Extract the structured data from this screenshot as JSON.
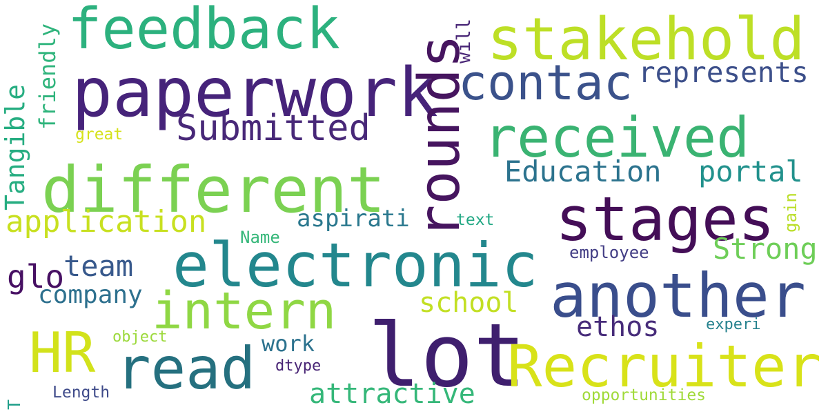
{
  "words": [
    {
      "text": "lot",
      "color": "#3f1f6e"
    },
    {
      "text": "paperwork",
      "color": "#46237a"
    },
    {
      "text": "different",
      "color": "#7bd152"
    },
    {
      "text": "electronic",
      "color": "#23878d"
    },
    {
      "text": "rounds",
      "color": "#46155f"
    },
    {
      "text": "stakehold",
      "color": "#bddf26"
    },
    {
      "text": "stages",
      "color": "#440e57"
    },
    {
      "text": "another",
      "color": "#3a4e8c"
    },
    {
      "text": "Recruiter",
      "color": "#d8e219"
    },
    {
      "text": "read",
      "color": "#25707f"
    },
    {
      "text": "feedback",
      "color": "#2cb17e"
    },
    {
      "text": "received",
      "color": "#3ab372"
    },
    {
      "text": "intern",
      "color": "#8fd744"
    },
    {
      "text": "contac",
      "color": "#3b528b"
    },
    {
      "text": "HR",
      "color": "#d2e21b"
    },
    {
      "text": "Submitted",
      "color": "#482878"
    },
    {
      "text": "application",
      "color": "#c8e020"
    },
    {
      "text": "Education",
      "color": "#2c738e"
    },
    {
      "text": "represents",
      "color": "#3c4f8a"
    },
    {
      "text": "portal",
      "color": "#21918c"
    },
    {
      "text": "Strong",
      "color": "#6ece58"
    },
    {
      "text": "team",
      "color": "#38598c"
    },
    {
      "text": "attractive",
      "color": "#35b779"
    },
    {
      "text": "school",
      "color": "#c2df23"
    },
    {
      "text": "ethos",
      "color": "#472c7a"
    },
    {
      "text": "glo",
      "color": "#471063"
    },
    {
      "text": "company",
      "color": "#2d708e"
    },
    {
      "text": "aspirati",
      "color": "#2a788e"
    },
    {
      "text": "work",
      "color": "#2c728e"
    },
    {
      "text": "Tangible",
      "color": "#26ad81"
    },
    {
      "text": "friendly",
      "color": "#2fb47c"
    },
    {
      "text": "will",
      "color": "#482576"
    },
    {
      "text": "employee",
      "color": "#433e85"
    },
    {
      "text": "Name",
      "color": "#35b779"
    },
    {
      "text": "text",
      "color": "#22a884"
    },
    {
      "text": "gain",
      "color": "#bade28"
    },
    {
      "text": "experi",
      "color": "#26828e"
    },
    {
      "text": "object",
      "color": "#9cd93b"
    },
    {
      "text": "dtype",
      "color": "#482475"
    },
    {
      "text": "Length",
      "color": "#3e4a89"
    },
    {
      "text": "opportunities",
      "color": "#a0da39"
    },
    {
      "text": "great",
      "color": "#d5e21a"
    },
    {
      "text": "T",
      "color": "#1f9e89"
    }
  ]
}
